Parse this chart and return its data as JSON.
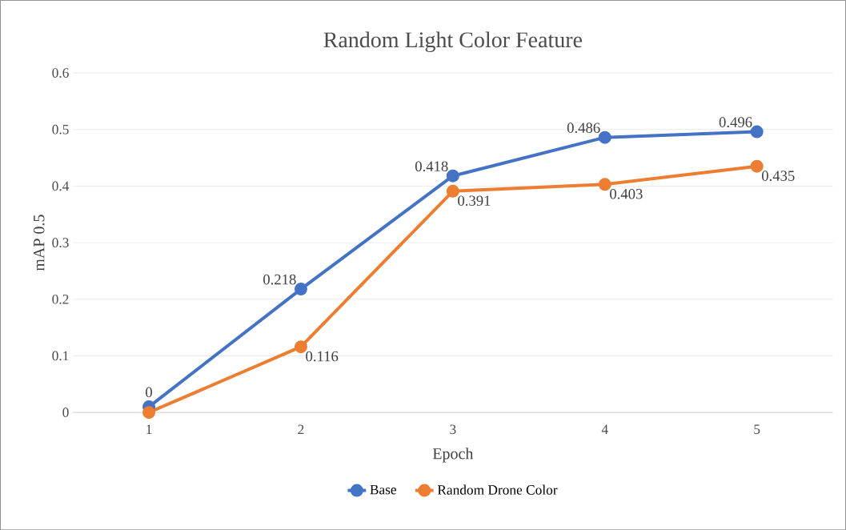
{
  "chart_data": {
    "type": "line",
    "title": "Random Light Color Feature",
    "xlabel": "Epoch",
    "ylabel": "mAP 0.5",
    "categories": [
      "1",
      "2",
      "3",
      "4",
      "5"
    ],
    "series": [
      {
        "name": "Base",
        "color": "#4472c4",
        "values": [
          0.01,
          0.218,
          0.418,
          0.486,
          0.496
        ],
        "value_labels": [
          null,
          "0.218",
          "0.418",
          "0.486",
          "0.496"
        ]
      },
      {
        "name": "Random Drone Color",
        "color": "#ed7d31",
        "values": [
          0,
          0.116,
          0.391,
          0.403,
          0.435
        ],
        "value_labels": [
          "0",
          "0.116",
          "0.391",
          "0.403",
          "0.435"
        ]
      }
    ],
    "ylim": [
      0,
      0.6
    ],
    "yticks": [
      0,
      0.1,
      0.2,
      0.3,
      0.4,
      0.5,
      0.6
    ],
    "grid": "y",
    "legend": "bottom",
    "marker": "circle",
    "line_style": "solid"
  }
}
